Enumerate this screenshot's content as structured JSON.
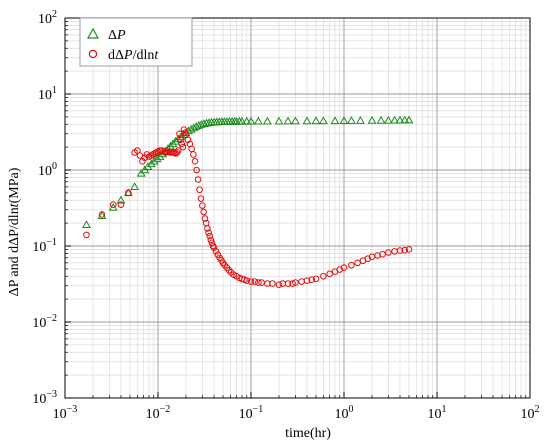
{
  "chart_data": {
    "type": "scatter",
    "xscale": "log",
    "yscale": "log",
    "xlim": [
      0.001,
      100
    ],
    "ylim": [
      0.001,
      100
    ],
    "grid": true,
    "legend_position": "top-left",
    "xlabel": "time(hr)",
    "ylabel": {
      "prefix": "ΔP and dΔP/dln",
      "italic": "t",
      "suffix": "(MPa)"
    },
    "x_ticks": [
      {
        "value": 0.001,
        "base": "10",
        "exp": "−3"
      },
      {
        "value": 0.01,
        "base": "10",
        "exp": "−2"
      },
      {
        "value": 0.1,
        "base": "10",
        "exp": "−1"
      },
      {
        "value": 1,
        "base": "10",
        "exp": "0"
      },
      {
        "value": 10,
        "base": "10",
        "exp": "1"
      },
      {
        "value": 100,
        "base": "10",
        "exp": "2"
      }
    ],
    "y_ticks": [
      {
        "value": 0.001,
        "base": "10",
        "exp": "−3"
      },
      {
        "value": 0.01,
        "base": "10",
        "exp": "−2"
      },
      {
        "value": 0.1,
        "base": "10",
        "exp": "−1"
      },
      {
        "value": 1,
        "base": "10",
        "exp": "0"
      },
      {
        "value": 10,
        "base": "10",
        "exp": "1"
      },
      {
        "value": 100,
        "base": "10",
        "exp": "2"
      }
    ],
    "series": [
      {
        "name": "ΔP",
        "legend_label": {
          "pre": "Δ",
          "italic": "P",
          "post": ""
        },
        "marker": "triangle",
        "color": "#1e8a1e",
        "x": [
          0.0017,
          0.0025,
          0.0033,
          0.004,
          0.0048,
          0.0056,
          0.0066,
          0.0072,
          0.0078,
          0.0085,
          0.0091,
          0.0098,
          0.0105,
          0.0112,
          0.012,
          0.0128,
          0.0136,
          0.0145,
          0.0155,
          0.0165,
          0.0176,
          0.0188,
          0.02,
          0.0213,
          0.0227,
          0.0242,
          0.0258,
          0.0275,
          0.0293,
          0.0312,
          0.0332,
          0.0354,
          0.0377,
          0.0402,
          0.0428,
          0.0456,
          0.0486,
          0.0518,
          0.0552,
          0.0588,
          0.0626,
          0.0667,
          0.07,
          0.075,
          0.08,
          0.09,
          0.1,
          0.12,
          0.15,
          0.2,
          0.25,
          0.3,
          0.4,
          0.5,
          0.6,
          0.8,
          1,
          1.2,
          1.5,
          2,
          2.5,
          3,
          3.5,
          4,
          4.5,
          5
        ],
        "y": [
          0.19,
          0.25,
          0.32,
          0.4,
          0.5,
          0.6,
          0.9,
          1.0,
          1.1,
          1.2,
          1.3,
          1.4,
          1.5,
          1.62,
          1.75,
          1.9,
          2.05,
          2.2,
          2.38,
          2.55,
          2.72,
          2.9,
          3.08,
          3.25,
          3.42,
          3.57,
          3.72,
          3.85,
          3.96,
          4.05,
          4.12,
          4.18,
          4.22,
          4.25,
          4.27,
          4.29,
          4.3,
          4.31,
          4.32,
          4.33,
          4.33,
          4.34,
          4.34,
          4.35,
          4.35,
          4.36,
          4.36,
          4.37,
          4.37,
          4.38,
          4.39,
          4.4,
          4.41,
          4.42,
          4.42,
          4.43,
          4.44,
          4.45,
          4.46,
          4.47,
          4.48,
          4.49,
          4.5,
          4.51,
          4.52,
          4.52
        ]
      },
      {
        "name": "dΔP/dlnt",
        "legend_label": {
          "pre": "dΔ",
          "italic": "P",
          "post": "/dln",
          "italic2": "t"
        },
        "marker": "circle",
        "color": "#e01010",
        "x": [
          0.0017,
          0.0025,
          0.0033,
          0.004,
          0.0048,
          0.0056,
          0.006,
          0.0064,
          0.0068,
          0.0072,
          0.0076,
          0.008,
          0.0084,
          0.0088,
          0.0092,
          0.0096,
          0.01,
          0.0105,
          0.011,
          0.0115,
          0.012,
          0.0125,
          0.013,
          0.0135,
          0.014,
          0.0145,
          0.015,
          0.0155,
          0.016,
          0.0165,
          0.017,
          0.0175,
          0.018,
          0.0185,
          0.019,
          0.0195,
          0.02,
          0.021,
          0.022,
          0.023,
          0.024,
          0.025,
          0.026,
          0.027,
          0.028,
          0.029,
          0.03,
          0.031,
          0.032,
          0.033,
          0.034,
          0.035,
          0.036,
          0.037,
          0.038,
          0.039,
          0.04,
          0.042,
          0.044,
          0.046,
          0.048,
          0.05,
          0.052,
          0.055,
          0.058,
          0.061,
          0.065,
          0.07,
          0.075,
          0.08,
          0.085,
          0.09,
          0.1,
          0.11,
          0.12,
          0.13,
          0.15,
          0.17,
          0.2,
          0.22,
          0.25,
          0.28,
          0.3,
          0.35,
          0.4,
          0.45,
          0.5,
          0.6,
          0.7,
          0.8,
          0.9,
          1,
          1.2,
          1.4,
          1.6,
          1.8,
          2,
          2.3,
          2.6,
          3,
          3.5,
          4,
          4.5,
          5
        ],
        "y": [
          0.14,
          0.26,
          0.35,
          0.35,
          0.5,
          1.7,
          1.8,
          1.55,
          1.3,
          1.45,
          1.6,
          1.5,
          1.55,
          1.6,
          1.65,
          1.7,
          1.75,
          1.8,
          1.8,
          1.75,
          1.7,
          1.72,
          1.75,
          1.7,
          1.72,
          1.7,
          1.68,
          1.65,
          1.7,
          1.8,
          3.0,
          2.5,
          2.2,
          2.0,
          3.4,
          3.1,
          2.9,
          2.5,
          2.2,
          1.9,
          1.6,
          1.3,
          1.0,
          0.75,
          0.55,
          0.42,
          0.34,
          0.28,
          0.23,
          0.2,
          0.17,
          0.15,
          0.135,
          0.12,
          0.11,
          0.1,
          0.095,
          0.085,
          0.077,
          0.07,
          0.065,
          0.06,
          0.056,
          0.052,
          0.048,
          0.045,
          0.042,
          0.04,
          0.038,
          0.037,
          0.036,
          0.035,
          0.034,
          0.034,
          0.033,
          0.033,
          0.032,
          0.032,
          0.031,
          0.032,
          0.032,
          0.032,
          0.033,
          0.034,
          0.035,
          0.036,
          0.037,
          0.04,
          0.043,
          0.046,
          0.049,
          0.052,
          0.056,
          0.06,
          0.064,
          0.068,
          0.072,
          0.075,
          0.078,
          0.082,
          0.085,
          0.087,
          0.088,
          0.09
        ]
      }
    ]
  }
}
